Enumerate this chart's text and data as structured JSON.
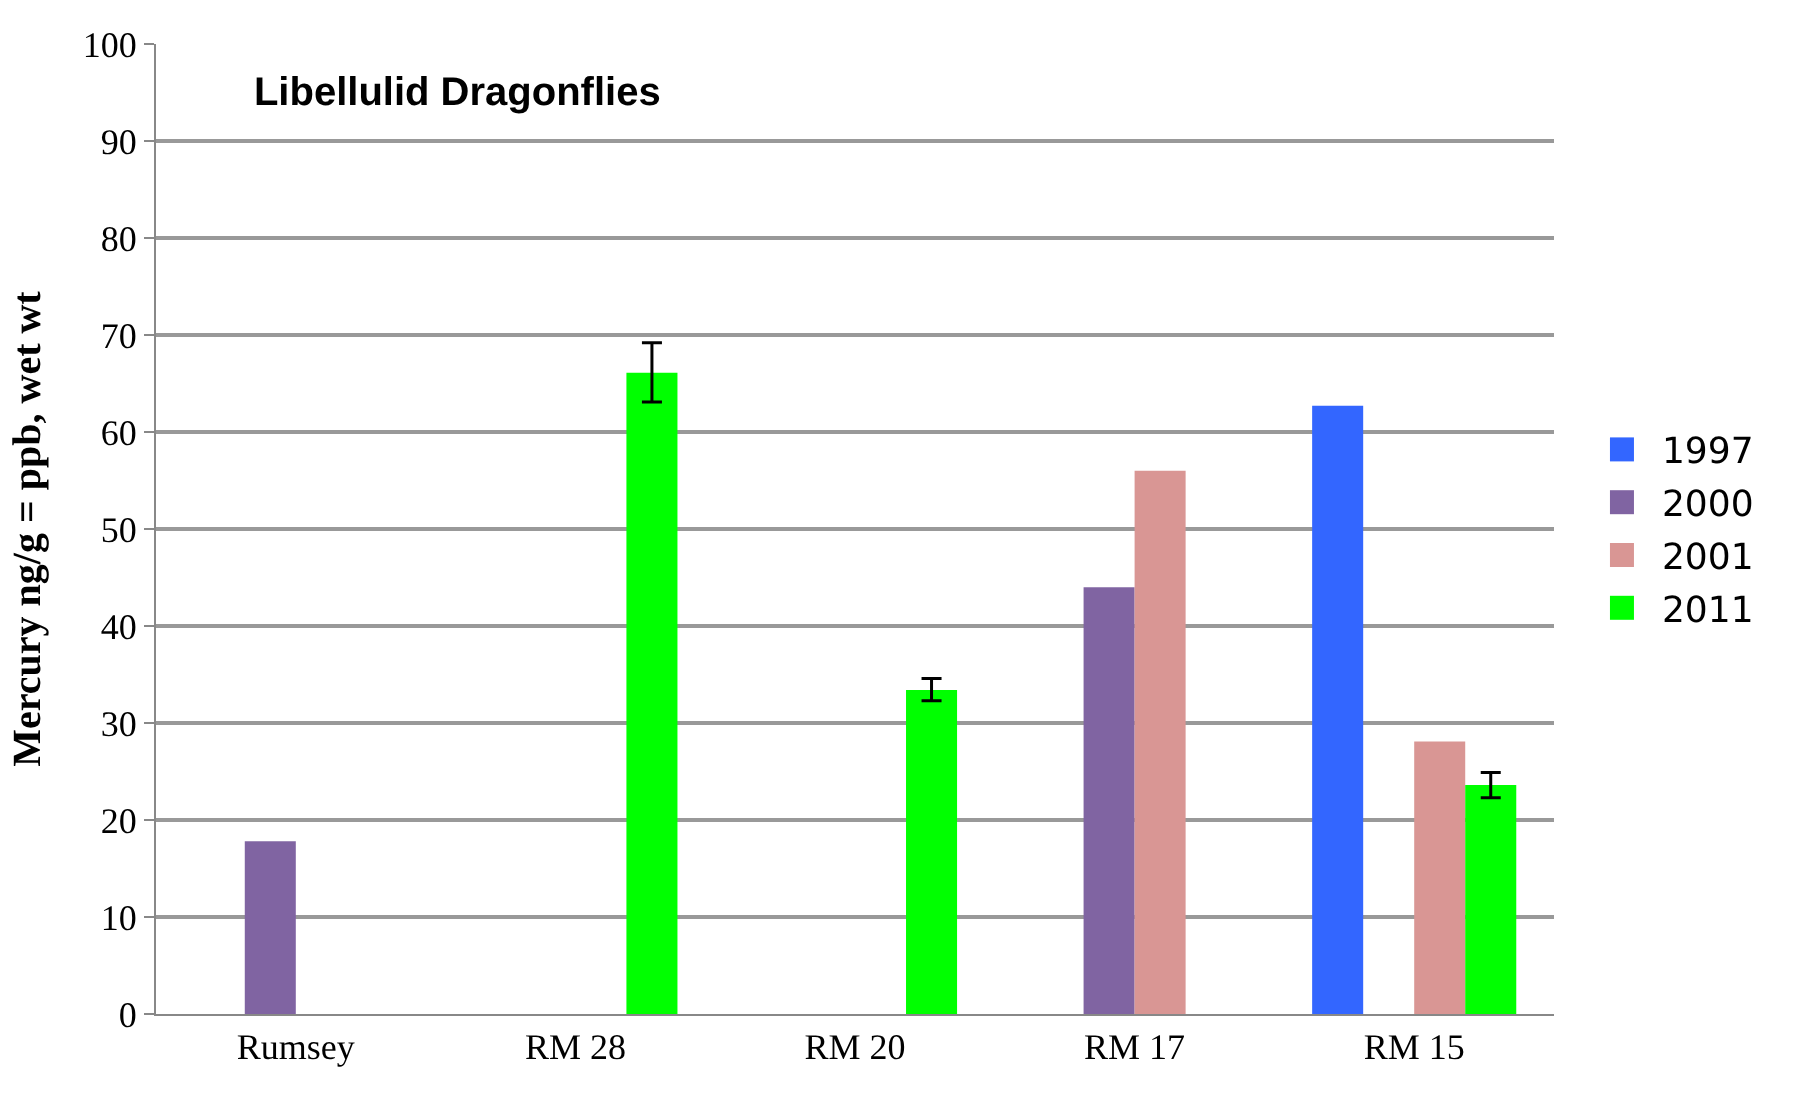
{
  "chart_data": {
    "type": "bar",
    "title": "Libellulid Dragonflies",
    "ylabel": "Mercury ng/g = ppb, wet wt",
    "categories": [
      "Rumsey",
      "RM 28",
      "RM 20",
      "RM 17",
      "RM 15"
    ],
    "series": [
      {
        "name": "1997",
        "color": "#3366ff",
        "values": [
          null,
          null,
          null,
          null,
          62.7
        ]
      },
      {
        "name": "2000",
        "color": "#8064a2",
        "values": [
          17.8,
          null,
          null,
          44.0,
          null
        ]
      },
      {
        "name": "2001",
        "color": "#d99694",
        "values": [
          null,
          null,
          null,
          56.0,
          28.1
        ]
      },
      {
        "name": "2011",
        "color": "#00ff00",
        "values": [
          null,
          66.1,
          33.4,
          null,
          23.6
        ],
        "errors": [
          null,
          [
            63.1,
            69.2
          ],
          [
            32.3,
            34.6
          ],
          null,
          [
            22.3,
            24.9
          ]
        ]
      }
    ],
    "ylim": [
      0,
      100
    ],
    "yticks": [
      0,
      10,
      20,
      30,
      40,
      50,
      60,
      70,
      80,
      90,
      100
    ],
    "grid": "y",
    "legend": "right"
  }
}
